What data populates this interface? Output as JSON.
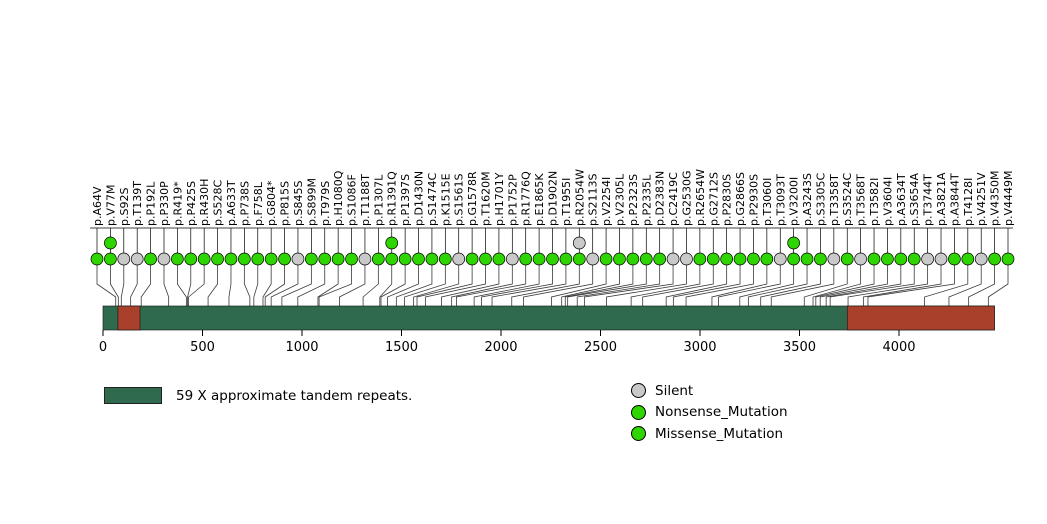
{
  "chart_data": {
    "type": "lollipop",
    "title": "",
    "xlabel": "",
    "axis": {
      "min": 0,
      "max": 4480,
      "ticks": [
        0,
        500,
        1000,
        1500,
        2000,
        2500,
        3000,
        3500,
        4000
      ]
    },
    "protein": {
      "length": 4480,
      "base_color": "#2F6A4E",
      "segments": [
        {
          "start": 75,
          "end": 186,
          "color": "#A8402C"
        },
        {
          "start": 3740,
          "end": 4480,
          "color": "#A8402C"
        }
      ]
    },
    "colors": {
      "Silent": "#C9C9C9",
      "Nonsense_Mutation": "#2ED500",
      "Missense_Mutation": "#2ED500"
    },
    "mutations": [
      {
        "label": "p.A64V",
        "pos": 64,
        "type": "Missense_Mutation"
      },
      {
        "label": "p.V77M",
        "pos": 77,
        "type": "Missense_Mutation",
        "extra": [
          "Missense_Mutation"
        ]
      },
      {
        "label": "p.S92S",
        "pos": 92,
        "type": "Silent"
      },
      {
        "label": "p.T139T",
        "pos": 139,
        "type": "Silent"
      },
      {
        "label": "p.P192L",
        "pos": 192,
        "type": "Missense_Mutation"
      },
      {
        "label": "p.P330P",
        "pos": 330,
        "type": "Silent"
      },
      {
        "label": "p.R419*",
        "pos": 419,
        "type": "Nonsense_Mutation"
      },
      {
        "label": "p.P425S",
        "pos": 425,
        "type": "Missense_Mutation"
      },
      {
        "label": "p.R430H",
        "pos": 430,
        "type": "Missense_Mutation"
      },
      {
        "label": "p.S528C",
        "pos": 528,
        "type": "Missense_Mutation"
      },
      {
        "label": "p.A633T",
        "pos": 633,
        "type": "Missense_Mutation"
      },
      {
        "label": "p.P738S",
        "pos": 738,
        "type": "Missense_Mutation"
      },
      {
        "label": "p.F758L",
        "pos": 758,
        "type": "Missense_Mutation"
      },
      {
        "label": "p.G804*",
        "pos": 804,
        "type": "Nonsense_Mutation"
      },
      {
        "label": "p.P815S",
        "pos": 815,
        "type": "Missense_Mutation"
      },
      {
        "label": "p.S845S",
        "pos": 845,
        "type": "Silent"
      },
      {
        "label": "p.S899M",
        "pos": 899,
        "type": "Missense_Mutation"
      },
      {
        "label": "p.T979S",
        "pos": 979,
        "type": "Missense_Mutation"
      },
      {
        "label": "p.H1080Q",
        "pos": 1080,
        "type": "Missense_Mutation"
      },
      {
        "label": "p.S1086F",
        "pos": 1086,
        "type": "Missense_Mutation"
      },
      {
        "label": "p.T1188T",
        "pos": 1188,
        "type": "Silent"
      },
      {
        "label": "p.P1307L",
        "pos": 1307,
        "type": "Missense_Mutation"
      },
      {
        "label": "p.R1391Q",
        "pos": 1391,
        "type": "Missense_Mutation",
        "extra": [
          "Missense_Mutation"
        ]
      },
      {
        "label": "p.P1397S",
        "pos": 1397,
        "type": "Missense_Mutation"
      },
      {
        "label": "p.D1430N",
        "pos": 1430,
        "type": "Missense_Mutation"
      },
      {
        "label": "p.S1474C",
        "pos": 1474,
        "type": "Missense_Mutation"
      },
      {
        "label": "p.K1515E",
        "pos": 1515,
        "type": "Missense_Mutation"
      },
      {
        "label": "p.S1561S",
        "pos": 1561,
        "type": "Silent"
      },
      {
        "label": "p.G1578R",
        "pos": 1578,
        "type": "Missense_Mutation"
      },
      {
        "label": "p.T1620M",
        "pos": 1620,
        "type": "Missense_Mutation"
      },
      {
        "label": "p.H1701Y",
        "pos": 1701,
        "type": "Missense_Mutation"
      },
      {
        "label": "p.P1752P",
        "pos": 1752,
        "type": "Silent"
      },
      {
        "label": "p.R1776Q",
        "pos": 1776,
        "type": "Missense_Mutation"
      },
      {
        "label": "p.E1865K",
        "pos": 1865,
        "type": "Missense_Mutation"
      },
      {
        "label": "p.D1902N",
        "pos": 1902,
        "type": "Missense_Mutation"
      },
      {
        "label": "p.T1955I",
        "pos": 1955,
        "type": "Missense_Mutation"
      },
      {
        "label": "p.R2054W",
        "pos": 2054,
        "type": "Missense_Mutation",
        "extra": [
          "Silent"
        ]
      },
      {
        "label": "p.S2113S",
        "pos": 2113,
        "type": "Silent"
      },
      {
        "label": "p.V2254I",
        "pos": 2254,
        "type": "Missense_Mutation"
      },
      {
        "label": "p.V2305L",
        "pos": 2305,
        "type": "Missense_Mutation"
      },
      {
        "label": "p.P2323S",
        "pos": 2323,
        "type": "Missense_Mutation"
      },
      {
        "label": "p.P2335L",
        "pos": 2335,
        "type": "Missense_Mutation"
      },
      {
        "label": "p.D2383N",
        "pos": 2383,
        "type": "Missense_Mutation"
      },
      {
        "label": "p.C2419C",
        "pos": 2419,
        "type": "Silent"
      },
      {
        "label": "p.G2530G",
        "pos": 2530,
        "type": "Silent"
      },
      {
        "label": "p.R2654W",
        "pos": 2654,
        "type": "Missense_Mutation"
      },
      {
        "label": "p.G2712S",
        "pos": 2712,
        "type": "Missense_Mutation"
      },
      {
        "label": "p.P2830S",
        "pos": 2830,
        "type": "Missense_Mutation"
      },
      {
        "label": "p.G2866S",
        "pos": 2866,
        "type": "Missense_Mutation"
      },
      {
        "label": "p.P2930S",
        "pos": 2930,
        "type": "Missense_Mutation"
      },
      {
        "label": "p.T3060I",
        "pos": 3060,
        "type": "Missense_Mutation"
      },
      {
        "label": "p.T3093T",
        "pos": 3093,
        "type": "Silent"
      },
      {
        "label": "p.V3200I",
        "pos": 3200,
        "type": "Missense_Mutation",
        "extra": [
          "Missense_Mutation"
        ]
      },
      {
        "label": "p.A3243S",
        "pos": 3243,
        "type": "Missense_Mutation"
      },
      {
        "label": "p.S3305C",
        "pos": 3305,
        "type": "Missense_Mutation"
      },
      {
        "label": "p.T3358T",
        "pos": 3358,
        "type": "Silent"
      },
      {
        "label": "p.S3524C",
        "pos": 3524,
        "type": "Missense_Mutation"
      },
      {
        "label": "p.T3568T",
        "pos": 3568,
        "type": "Silent"
      },
      {
        "label": "p.T3582I",
        "pos": 3582,
        "type": "Missense_Mutation"
      },
      {
        "label": "p.V3604I",
        "pos": 3604,
        "type": "Missense_Mutation"
      },
      {
        "label": "p.A3634T",
        "pos": 3634,
        "type": "Missense_Mutation"
      },
      {
        "label": "p.S3654A",
        "pos": 3654,
        "type": "Missense_Mutation"
      },
      {
        "label": "p.T3744T",
        "pos": 3744,
        "type": "Silent"
      },
      {
        "label": "p.A3821A",
        "pos": 3821,
        "type": "Silent"
      },
      {
        "label": "p.A3844T",
        "pos": 3844,
        "type": "Missense_Mutation"
      },
      {
        "label": "p.T4128I",
        "pos": 4128,
        "type": "Missense_Mutation"
      },
      {
        "label": "p.V4251V",
        "pos": 4251,
        "type": "Silent"
      },
      {
        "label": "p.V4350M",
        "pos": 4350,
        "type": "Missense_Mutation"
      },
      {
        "label": "p.V4449M",
        "pos": 4449,
        "type": "Missense_Mutation"
      }
    ]
  },
  "legend": {
    "domain_label": "59 X approximate tandem repeats.",
    "domain_color": "#2F6A4E",
    "items": [
      {
        "label": "Silent",
        "color": "#C9C9C9"
      },
      {
        "label": "Nonsense_Mutation",
        "color": "#2ED500"
      },
      {
        "label": "Missense_Mutation",
        "color": "#2ED500"
      }
    ]
  }
}
